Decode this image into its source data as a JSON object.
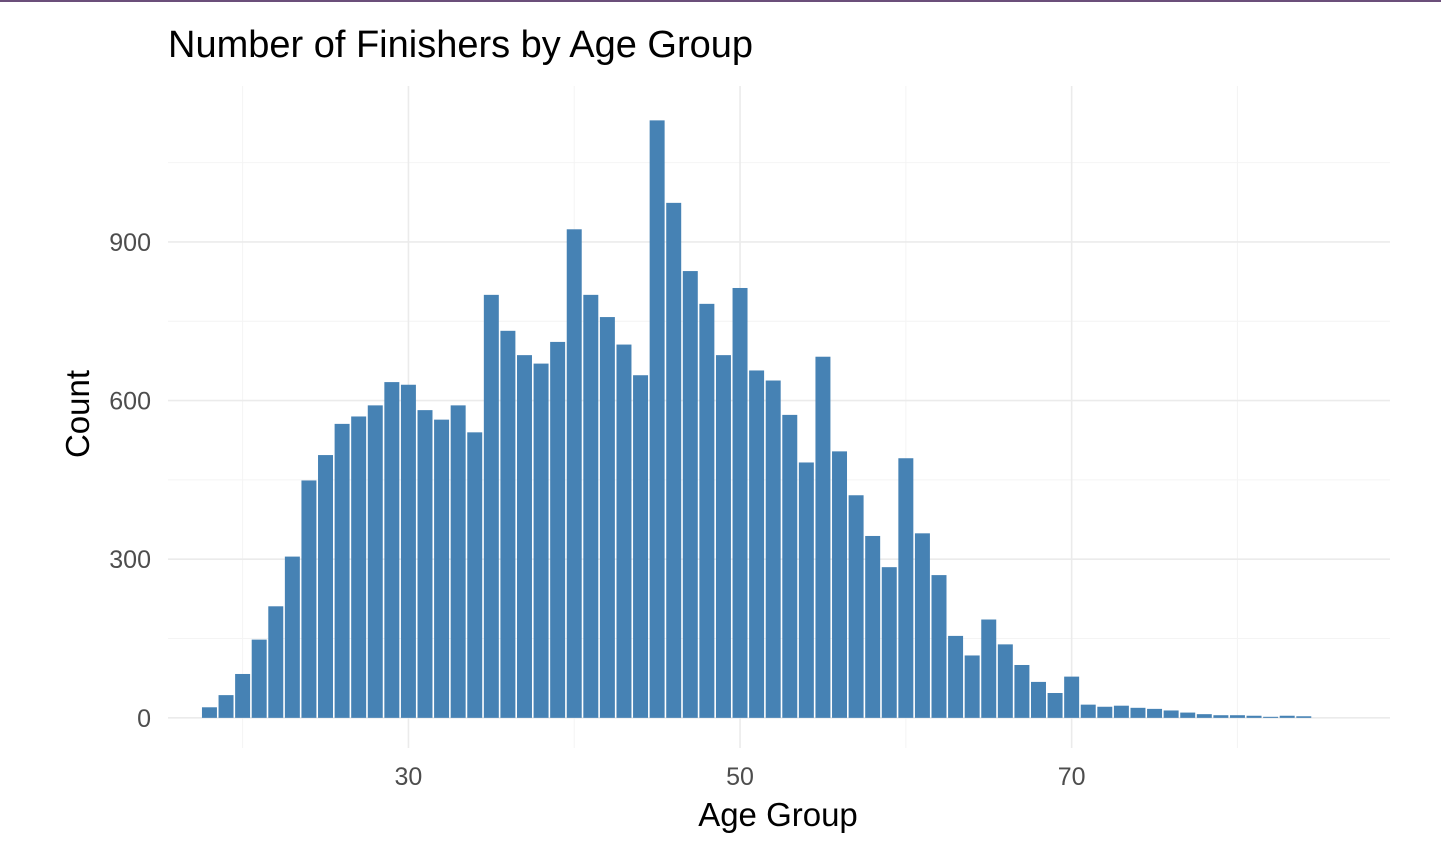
{
  "chart_data": {
    "type": "bar",
    "title": "Number of Finishers by Age Group",
    "xlabel": "Age Group",
    "ylabel": "Count",
    "bar_color": "#4682B4",
    "xlim": [
      15.5,
      89.2
    ],
    "ylim": [
      -57,
      1195
    ],
    "x_ticks": [
      30,
      50,
      70
    ],
    "x_tick_labels": [
      "30",
      "50",
      "70"
    ],
    "y_ticks": [
      0,
      300,
      600,
      900
    ],
    "y_tick_labels": [
      "0",
      "300",
      "600",
      "900"
    ],
    "grid": true,
    "legend": "none",
    "x": [
      18,
      19,
      20,
      21,
      22,
      23,
      24,
      25,
      26,
      27,
      28,
      29,
      30,
      31,
      32,
      33,
      34,
      35,
      36,
      37,
      38,
      39,
      40,
      41,
      42,
      43,
      44,
      45,
      46,
      47,
      48,
      49,
      50,
      51,
      52,
      53,
      54,
      55,
      56,
      57,
      58,
      59,
      60,
      61,
      62,
      63,
      64,
      65,
      66,
      67,
      68,
      69,
      70,
      71,
      72,
      73,
      74,
      75,
      76,
      77,
      78,
      79,
      80,
      81,
      82,
      83,
      84
    ],
    "values": [
      20,
      43,
      83,
      148,
      211,
      305,
      449,
      497,
      556,
      570,
      591,
      635,
      630,
      582,
      564,
      591,
      540,
      800,
      732,
      686,
      670,
      711,
      924,
      800,
      758,
      706,
      648,
      1130,
      974,
      845,
      783,
      686,
      813,
      657,
      638,
      573,
      483,
      683,
      504,
      421,
      344,
      285,
      491,
      349,
      270,
      155,
      118,
      186,
      139,
      100,
      68,
      47,
      78,
      25,
      21,
      23,
      19,
      17,
      14,
      10,
      7,
      5,
      5,
      4,
      2,
      4,
      3
    ]
  }
}
